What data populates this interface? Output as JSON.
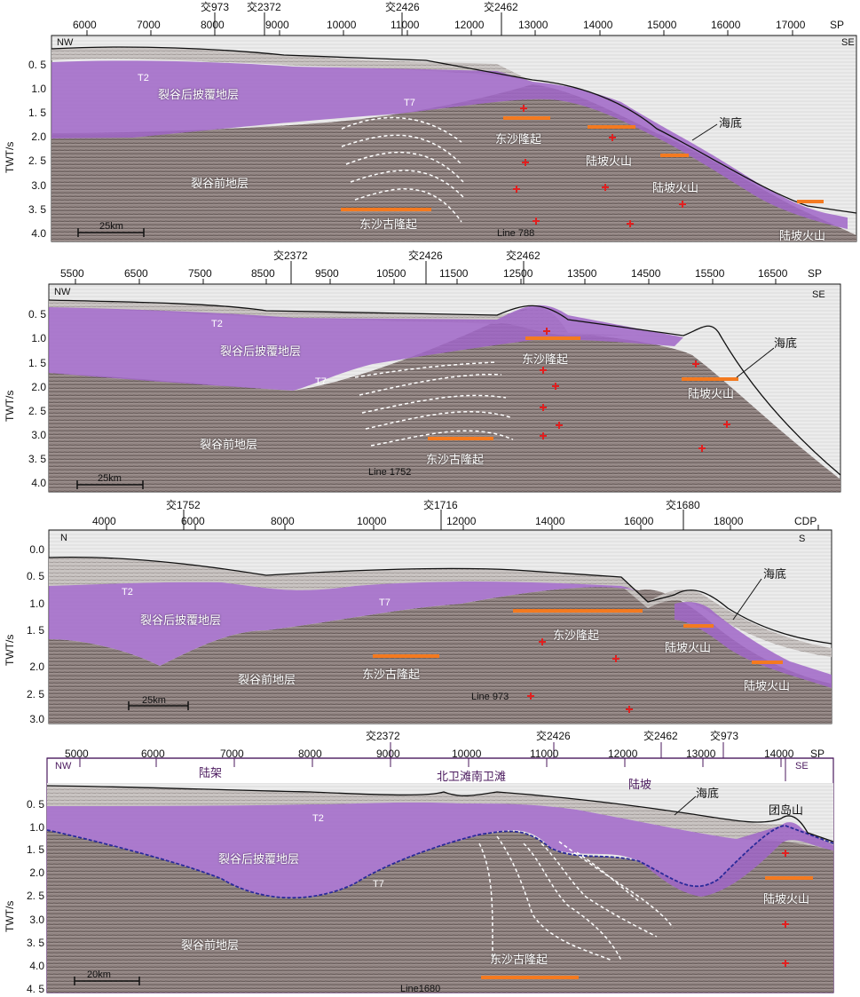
{
  "axis_title": "TWT/s",
  "scale_label_25": "25km",
  "scale_label_20": "20km",
  "labels": {
    "post_rift": "裂谷后披覆地层",
    "pre_rift": "裂谷前地层",
    "dongsha_uplift": "东沙隆起",
    "dongsha_paleo": "东沙古隆起",
    "slope_volcano": "陆坡火山",
    "seafloor": "海底",
    "shelf": "陆架",
    "slope": "陆坡",
    "beiwei": "北卫滩南卫滩",
    "tuandao": "团岛山",
    "T2": "T2",
    "T7": "T7"
  },
  "panels": [
    {
      "line": "Line  788",
      "dir_left": "NW",
      "dir_right": "SE",
      "axis_unit": "SP",
      "x_ticks": [
        "6000",
        "7000",
        "8000",
        "9000",
        "10000",
        "11000",
        "12000",
        "13000",
        "14000",
        "15000",
        "16000",
        "17000"
      ],
      "cross_ticks": [
        "交973",
        "交2372",
        "交2426",
        "交2462"
      ],
      "y_ticks": [
        "0. 5",
        "1.0",
        "1. 5",
        "2.0",
        "2. 5",
        "3.0",
        "3. 5",
        "4.0"
      ]
    },
    {
      "line": "Line 1752",
      "dir_left": "NW",
      "dir_right": "SE",
      "axis_unit": "SP",
      "x_ticks": [
        "5500",
        "6500",
        "7500",
        "8500",
        "9500",
        "10500",
        "11500",
        "12500",
        "13500",
        "14500",
        "15500",
        "16500"
      ],
      "cross_ticks": [
        "交2372",
        "交2426",
        "交2462"
      ],
      "y_ticks": [
        "0. 5",
        "1.0",
        "1. 5",
        "2.0",
        "2. 5",
        "3.0",
        "3. 5",
        "4.0"
      ]
    },
    {
      "line": "Line 973",
      "dir_left": "N",
      "dir_right": "S",
      "axis_unit": "CDP",
      "x_ticks": [
        "4000",
        "6000",
        "8000",
        "10000",
        "12000",
        "14000",
        "16000",
        "18000"
      ],
      "cross_ticks": [
        "交1752",
        "交1716",
        "交1680"
      ],
      "y_ticks": [
        "0.0",
        "0. 5",
        "1.0",
        "1. 5",
        "2.0",
        "2. 5",
        "3.0"
      ]
    },
    {
      "line": "Line1680",
      "dir_left": "NW",
      "dir_right": "SE",
      "axis_unit": "SP",
      "x_ticks": [
        "5000",
        "6000",
        "7000",
        "8000",
        "9000",
        "10000",
        "11000",
        "12000",
        "13000",
        "14000"
      ],
      "cross_ticks": [
        "交2372",
        "交2426",
        "交2462",
        "交973"
      ],
      "y_ticks": [
        "0. 5",
        "1.0",
        "1. 5",
        "2.0",
        "2. 5",
        "3.0",
        "3. 5",
        "4.0",
        "4. 5"
      ]
    }
  ],
  "colors": {
    "purple": "#a066c8",
    "seismic": "#8a7c7a",
    "orange": "#f47a20",
    "red": "#e02020",
    "white_dash": "#ffffff"
  }
}
